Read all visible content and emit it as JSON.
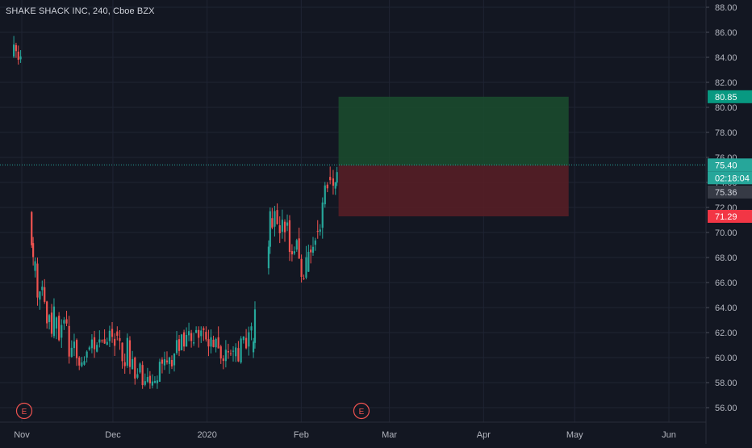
{
  "chart_title": "SHAKE SHACK INC, 240, Cboe BZX",
  "colors": {
    "background": "#131722",
    "grid": "#1f2433",
    "text": "#b2b5be",
    "up": "#26a69a",
    "down": "#ef5350",
    "profit_zone": "#1b4d2e",
    "loss_zone": "#5a1e26",
    "target_label": "#089981",
    "stop_label": "#f23645",
    "last_price_label": "#26a69a",
    "entry_label": "#363a45"
  },
  "chart_data": {
    "type": "candlestick",
    "title": "SHAKE SHACK INC, 240, Cboe BZX",
    "symbol": "SHAKE SHACK INC",
    "interval": "240",
    "exchange": "Cboe BZX",
    "grid": true,
    "ylim": [
      55,
      89
    ],
    "y_ticks": [
      "88.00",
      "86.00",
      "84.00",
      "82.00",
      "80.00",
      "78.00",
      "76.00",
      "74.00",
      "72.00",
      "70.00",
      "68.00",
      "66.00",
      "64.00",
      "62.00",
      "60.00",
      "58.00",
      "56.00"
    ],
    "x_ticks": [
      "Nov",
      "Dec",
      "2020",
      "Feb",
      "Mar",
      "Apr",
      "May",
      "Jun"
    ],
    "earnings_markers": [
      {
        "label": "E",
        "date": "Nov 1"
      },
      {
        "label": "E",
        "date": "Feb 20"
      }
    ],
    "price_labels": {
      "target": "80.85",
      "last_price": "75.40",
      "countdown": "02:18:04",
      "entry": "75.36",
      "stop": "71.29"
    },
    "position": {
      "type": "long",
      "entry": 75.36,
      "target": 80.85,
      "stop": 71.29,
      "start": "Feb 13",
      "end": "Apr 29"
    },
    "candle_segments": [
      {
        "from": "Oct 29",
        "to": "Nov 1",
        "open": 84.0,
        "close": 83.5,
        "low_bound": 81.0,
        "high_bound": 86.5
      },
      {
        "from": "Nov 4",
        "to": "Nov 5",
        "open": 71.5,
        "close": 67.0,
        "low_bound": 66.0,
        "high_bound": 72.0
      },
      {
        "from": "Nov 5",
        "to": "Nov 12",
        "open": 67.0,
        "close": 62.5,
        "low_bound": 61.0,
        "high_bound": 68.0
      },
      {
        "from": "Nov 12",
        "to": "Nov 22",
        "open": 62.5,
        "close": 60.0,
        "low_bound": 59.0,
        "high_bound": 64.0
      },
      {
        "from": "Nov 22",
        "to": "Dec 2",
        "open": 60.0,
        "close": 62.0,
        "low_bound": 59.0,
        "high_bound": 63.0
      },
      {
        "from": "Dec 2",
        "to": "Dec 12",
        "open": 62.0,
        "close": 58.0,
        "low_bound": 57.5,
        "high_bound": 62.5
      },
      {
        "from": "Dec 12",
        "to": "Dec 20",
        "open": 58.0,
        "close": 60.0,
        "low_bound": 57.5,
        "high_bound": 60.5
      },
      {
        "from": "Dec 20",
        "to": "Dec 28",
        "open": 60.0,
        "close": 62.0,
        "low_bound": 58.5,
        "high_bound": 62.8
      },
      {
        "from": "Dec 28",
        "to": "Jan 10",
        "open": 62.0,
        "close": 60.0,
        "low_bound": 59.0,
        "high_bound": 62.5
      },
      {
        "from": "Jan 10",
        "to": "Jan 16",
        "open": 60.0,
        "close": 62.0,
        "low_bound": 59.0,
        "high_bound": 62.8
      },
      {
        "from": "Jan 16",
        "to": "Jan 17",
        "open": 60.5,
        "close": 64.0,
        "low_bound": 59.5,
        "high_bound": 64.5
      },
      {
        "from": "Jan 21",
        "to": "Jan 22",
        "open": 67.0,
        "close": 71.0,
        "low_bound": 66.5,
        "high_bound": 72.0
      },
      {
        "from": "Jan 22",
        "to": "Jan 27",
        "open": 71.0,
        "close": 70.5,
        "low_bound": 69.0,
        "high_bound": 72.5
      },
      {
        "from": "Jan 27",
        "to": "Feb 3",
        "open": 70.5,
        "close": 67.0,
        "low_bound": 66.0,
        "high_bound": 71.5
      },
      {
        "from": "Feb 3",
        "to": "Feb 6",
        "open": 67.0,
        "close": 70.0,
        "low_bound": 66.5,
        "high_bound": 70.5
      },
      {
        "from": "Feb 6",
        "to": "Feb 10",
        "open": 70.0,
        "close": 74.5,
        "low_bound": 69.5,
        "high_bound": 75.5
      },
      {
        "from": "Feb 10",
        "to": "Feb 12",
        "open": 74.5,
        "close": 74.0,
        "low_bound": 72.0,
        "high_bound": 76.0
      },
      {
        "from": "Feb 12",
        "to": "Feb 13",
        "open": 73.5,
        "close": 75.4,
        "low_bound": 73.0,
        "high_bound": 75.6
      }
    ]
  }
}
